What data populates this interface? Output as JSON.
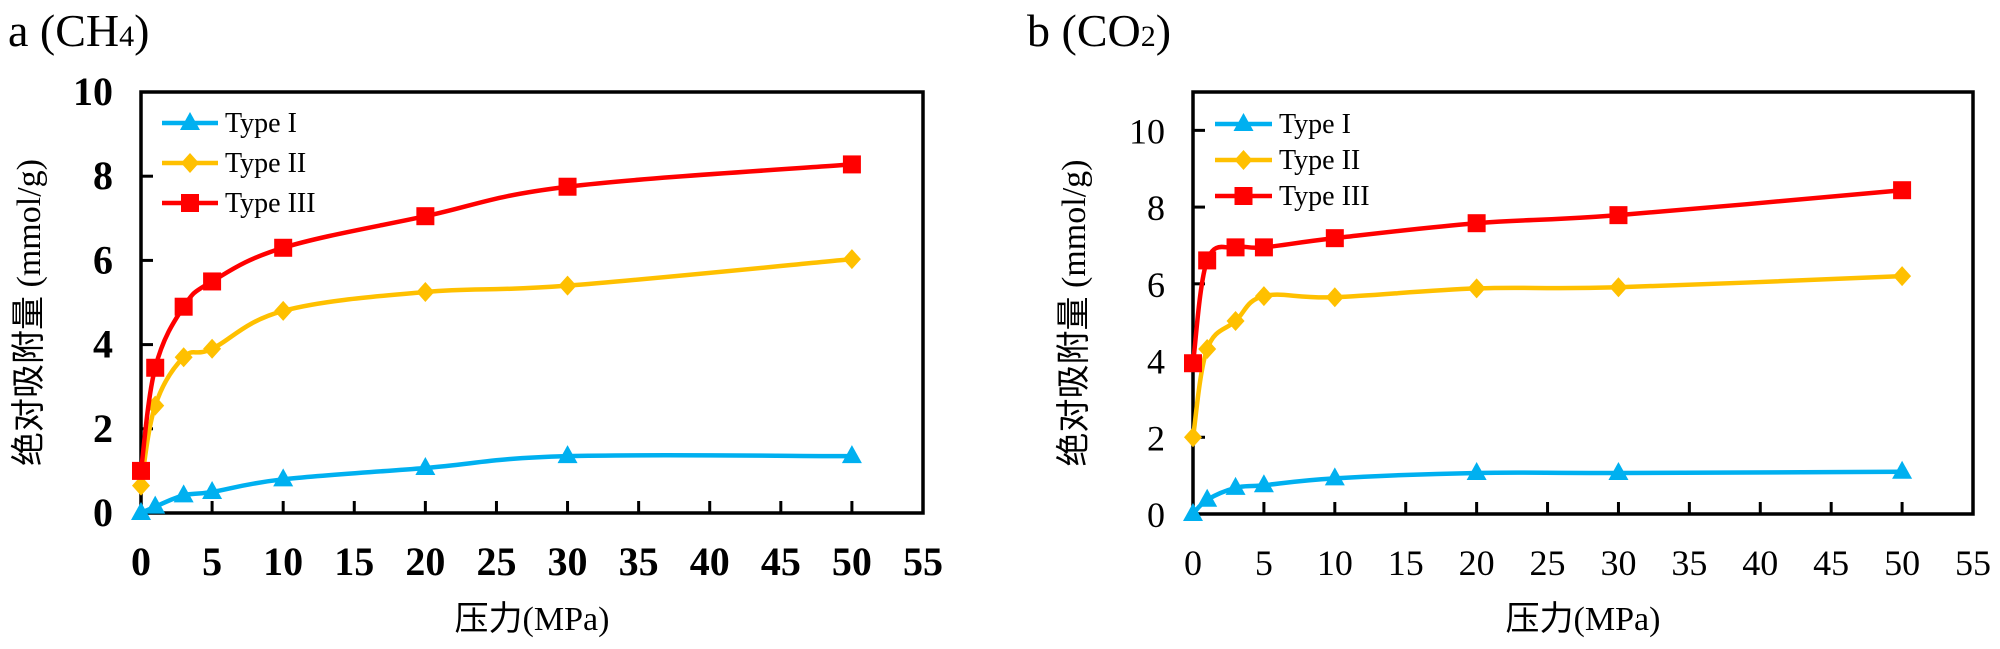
{
  "chart_data": [
    {
      "type": "line",
      "panel_label": "a (CH",
      "panel_sub": "4",
      "panel_close": ")",
      "xlabel": "压力(MPa)",
      "ylabel": "绝对吸附量 (mmol/g)",
      "xlim": [
        0,
        55
      ],
      "ylim": [
        0,
        10
      ],
      "xticks": [
        0,
        5,
        10,
        15,
        20,
        25,
        30,
        35,
        40,
        45,
        50,
        55
      ],
      "yticks": [
        0,
        2,
        4,
        6,
        8,
        10
      ],
      "grid": false,
      "legend_position": "top-left",
      "x": [
        0,
        1,
        3,
        5,
        10,
        20,
        30,
        50
      ],
      "series": [
        {
          "name": "Type I",
          "color": "#00B0F0",
          "marker": "triangle",
          "values": [
            0.0,
            0.15,
            0.42,
            0.5,
            0.8,
            1.07,
            1.35,
            1.35
          ]
        },
        {
          "name": "Type II",
          "color": "#FFC000",
          "marker": "diamond",
          "values": [
            0.65,
            2.55,
            3.7,
            3.9,
            4.8,
            5.25,
            5.4,
            6.03
          ]
        },
        {
          "name": "Type III",
          "color": "#FF0000",
          "marker": "square",
          "values": [
            1.0,
            3.45,
            4.9,
            5.5,
            6.3,
            7.05,
            7.75,
            8.28
          ]
        }
      ]
    },
    {
      "type": "line",
      "panel_label": "b (CO",
      "panel_sub": "2",
      "panel_close": ")",
      "xlabel": "压力(MPa)",
      "ylabel": "绝对吸附量 (mmol/g)",
      "xlim": [
        0,
        55
      ],
      "ylim": [
        0,
        11
      ],
      "xticks": [
        0,
        5,
        10,
        15,
        20,
        25,
        30,
        35,
        40,
        45,
        50,
        55
      ],
      "yticks": [
        0,
        2,
        4,
        6,
        8,
        10
      ],
      "grid": false,
      "legend_position": "top-left",
      "x": [
        0,
        1,
        3,
        5,
        10,
        20,
        30,
        50
      ],
      "series": [
        {
          "name": "Type I",
          "color": "#00B0F0",
          "marker": "triangle",
          "values": [
            0.0,
            0.37,
            0.68,
            0.75,
            0.93,
            1.07,
            1.07,
            1.1
          ]
        },
        {
          "name": "Type II",
          "color": "#FFC000",
          "marker": "diamond",
          "values": [
            2.0,
            4.3,
            5.03,
            5.68,
            5.65,
            5.88,
            5.91,
            6.2
          ]
        },
        {
          "name": "Type III",
          "color": "#FF0000",
          "marker": "square",
          "values": [
            3.93,
            6.61,
            6.95,
            6.95,
            7.19,
            7.58,
            7.79,
            8.44
          ]
        }
      ]
    }
  ]
}
